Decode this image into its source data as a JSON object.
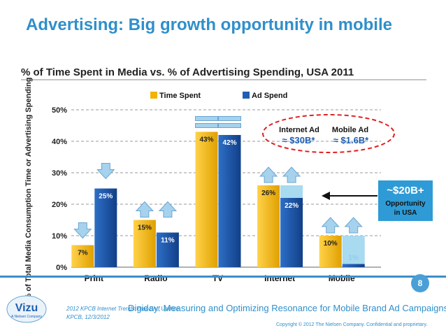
{
  "slide": {
    "title": "Advertising: Big growth opportunity in mobile",
    "page_number": "8",
    "source_line1": "2012 KPCB Internet Trends Year-End Update",
    "source_line2": "KPCB, 12/3/2012",
    "caption": "Digiday: Measuring and Optimizing Resonance for Mobile Brand Ad Campaigns",
    "copyright": "Copyright © 2012 The Nielsen Company. Confidential and proprietary.",
    "logo_text": "Vizu",
    "logo_subtext": "A Nielsen Company"
  },
  "chart_data": {
    "type": "bar",
    "title": "% of Time Spent in Media vs. % of Advertising Spending, USA 2011",
    "ylabel": "% of Total Media Consumption Time or Advertising Spending",
    "xlabel": "",
    "ylim": [
      0,
      50
    ],
    "yticks": [
      "0%",
      "10%",
      "20%",
      "30%",
      "40%",
      "50%"
    ],
    "grid": true,
    "legend_position": "top-center",
    "categories": [
      "Print",
      "Radio",
      "TV",
      "Internet",
      "Mobile"
    ],
    "series": [
      {
        "name": "Time Spent",
        "color": "#f2b400",
        "values": [
          7,
          15,
          43,
          26,
          10
        ],
        "labels": [
          "7%",
          "15%",
          "43%",
          "26%",
          "10%"
        ]
      },
      {
        "name": "Ad Spend",
        "color": "#1f5fb4",
        "values": [
          25,
          11,
          42,
          22,
          1
        ],
        "labels": [
          "25%",
          "11%",
          "42%",
          "22%",
          "1%"
        ]
      }
    ],
    "annotations": {
      "internet_ad_label": "Internet Ad",
      "internet_ad_value": "≈ $30B*",
      "mobile_ad_label": "Mobile Ad",
      "mobile_ad_value": "≈ $1.6B*",
      "opportunity_value": "~$20B+",
      "opportunity_line1": "Opportunity",
      "opportunity_line2": "in USA"
    },
    "arrows": [
      "down",
      "up",
      "equal",
      "up",
      "up"
    ]
  }
}
